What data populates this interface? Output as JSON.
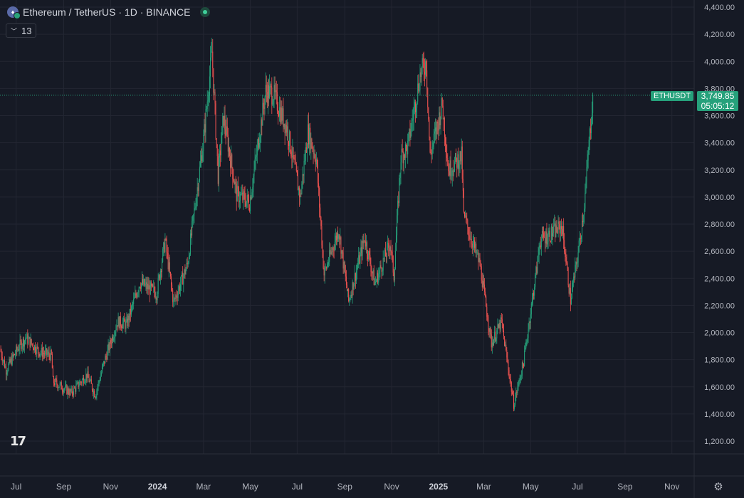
{
  "header": {
    "title": "Ethereum / TetherUS · 1D · BINANCE",
    "indicator_count": "13"
  },
  "price_label": {
    "symbol": "ETHUSDT",
    "price": "3,749.85",
    "countdown": "05:05:12"
  },
  "colors": {
    "up": "#26a17b",
    "down": "#ef5350",
    "background": "#161a25",
    "grid": "#232632",
    "text": "#b2b5be"
  },
  "chart_data": {
    "type": "candlestick",
    "title": "Ethereum / TetherUS · 1D · BINANCE",
    "y_ticks": [
      "4,400.00",
      "4,200.00",
      "4,000.00",
      "3,800.00",
      "3,600.00",
      "3,400.00",
      "3,200.00",
      "3,000.00",
      "2,800.00",
      "2,600.00",
      "2,400.00",
      "2,200.00",
      "2,000.00",
      "1,800.00",
      "1,600.00",
      "1,400.00",
      "1,200.00"
    ],
    "x_ticks": [
      "Jul",
      "Sep",
      "Nov",
      "2024",
      "Mar",
      "May",
      "Jul",
      "Sep",
      "Nov",
      "2025",
      "Mar",
      "May",
      "Jul",
      "Sep",
      "Nov"
    ],
    "ylim": [
      1200,
      4400
    ],
    "x_range": [
      "2023-06-10",
      "2025-11-30"
    ],
    "last_price": 3749.85,
    "anchors": [
      [
        "2023-06-10",
        1880
      ],
      [
        "2023-06-18",
        1725
      ],
      [
        "2023-07-05",
        1900
      ],
      [
        "2023-07-14",
        1960
      ],
      [
        "2023-07-31",
        1860
      ],
      [
        "2023-08-16",
        1830
      ],
      [
        "2023-08-18",
        1640
      ],
      [
        "2023-09-11",
        1555
      ],
      [
        "2023-10-01",
        1690
      ],
      [
        "2023-10-12",
        1540
      ],
      [
        "2023-10-24",
        1790
      ],
      [
        "2023-11-10",
        2080
      ],
      [
        "2023-11-22",
        2060
      ],
      [
        "2023-12-09",
        2370
      ],
      [
        "2023-12-31",
        2290
      ],
      [
        "2024-01-11",
        2680
      ],
      [
        "2024-01-22",
        2220
      ],
      [
        "2024-02-09",
        2500
      ],
      [
        "2024-03-01",
        3420
      ],
      [
        "2024-03-12",
        4070
      ],
      [
        "2024-03-20",
        3160
      ],
      [
        "2024-03-27",
        3590
      ],
      [
        "2024-04-13",
        3020
      ],
      [
        "2024-04-30",
        2960
      ],
      [
        "2024-05-21",
        3780
      ],
      [
        "2024-05-31",
        3760
      ],
      [
        "2024-06-18",
        3500
      ],
      [
        "2024-07-05",
        3000
      ],
      [
        "2024-07-15",
        3480
      ],
      [
        "2024-07-26",
        3280
      ],
      [
        "2024-08-05",
        2430
      ],
      [
        "2024-08-24",
        2760
      ],
      [
        "2024-09-06",
        2230
      ],
      [
        "2024-09-27",
        2700
      ],
      [
        "2024-10-10",
        2360
      ],
      [
        "2024-10-30",
        2660
      ],
      [
        "2024-11-04",
        2420
      ],
      [
        "2024-11-13",
        3300
      ],
      [
        "2024-11-22",
        3370
      ],
      [
        "2024-12-08",
        3900
      ],
      [
        "2024-12-16",
        4000
      ],
      [
        "2024-12-21",
        3300
      ],
      [
        "2025-01-06",
        3680
      ],
      [
        "2025-01-14",
        3200
      ],
      [
        "2025-01-31",
        3300
      ],
      [
        "2025-02-03",
        2860
      ],
      [
        "2025-02-24",
        2500
      ],
      [
        "2025-03-11",
        1920
      ],
      [
        "2025-03-24",
        2080
      ],
      [
        "2025-04-09",
        1470
      ],
      [
        "2025-04-22",
        1790
      ],
      [
        "2025-05-10",
        2520
      ],
      [
        "2025-05-13",
        2680
      ],
      [
        "2025-06-11",
        2780
      ],
      [
        "2025-06-22",
        2240
      ],
      [
        "2025-07-02",
        2590
      ],
      [
        "2025-07-10",
        2950
      ],
      [
        "2025-07-21",
        3749.85
      ]
    ]
  }
}
